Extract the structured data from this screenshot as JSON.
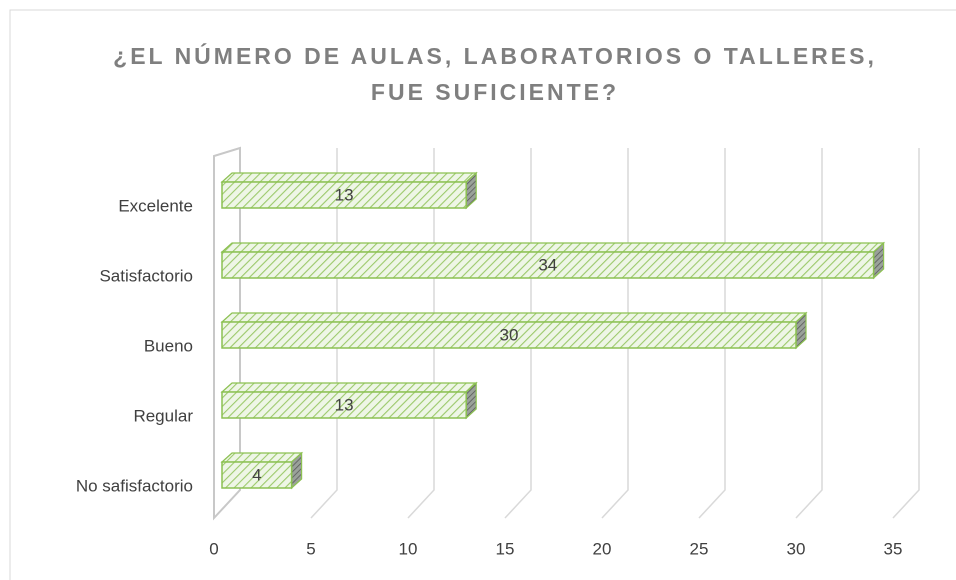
{
  "chart_data": {
    "type": "bar3d",
    "orientation": "horizontal",
    "title": "¿EL NÚMERO DE AULAS, LABORATORIOS O TALLERES, FUE SUFICIENTE?",
    "categories": [
      "No safisfactorio",
      "Regular",
      "Bueno",
      "Satisfactorio",
      "Excelente"
    ],
    "values": [
      4,
      13,
      30,
      34,
      13
    ],
    "color": "#8cc152",
    "xlim": [
      0,
      35
    ],
    "xticks": [
      0,
      5,
      10,
      15,
      20,
      25,
      30,
      35
    ],
    "grid": true
  }
}
